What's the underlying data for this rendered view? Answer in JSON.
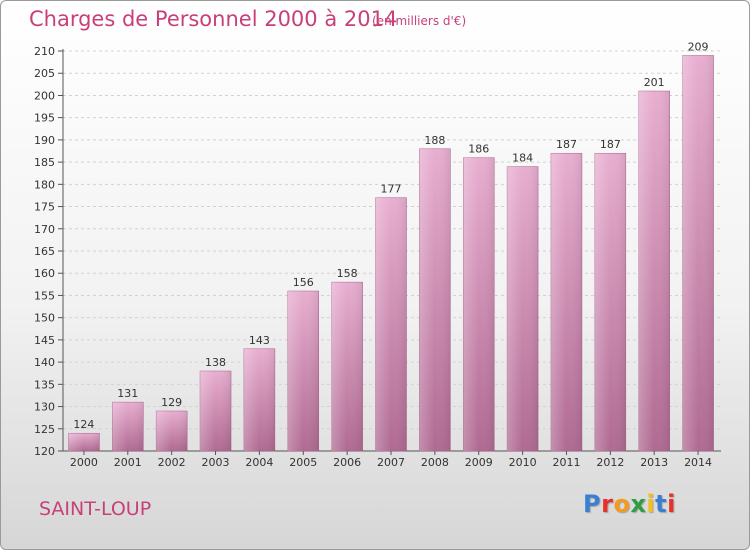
{
  "header": {
    "title": "Charges de Personnel 2000 à 2014",
    "subtitle": "(en milliers d'€)"
  },
  "footer": {
    "place": "SAINT-LOUP",
    "logo_text": "Proxiti",
    "logo_colors": [
      "#3a7fd0",
      "#e8302a",
      "#f39a1f",
      "#2e9d44",
      "#f0c020",
      "#3a7fd0",
      "#e8302a"
    ]
  },
  "colors": {
    "bar_light": "#e8aed0",
    "bar_dark": "#b06a92",
    "text": "#333333",
    "accent": "#c8407a"
  },
  "chart_data": {
    "type": "bar",
    "categories": [
      "2000",
      "2001",
      "2002",
      "2003",
      "2004",
      "2005",
      "2006",
      "2007",
      "2008",
      "2009",
      "2010",
      "2011",
      "2012",
      "2013",
      "2014"
    ],
    "values": [
      124,
      131,
      129,
      138,
      143,
      156,
      158,
      177,
      188,
      186,
      184,
      187,
      187,
      201,
      209
    ],
    "ylim": [
      120,
      210
    ],
    "yticks": [
      120,
      125,
      130,
      135,
      140,
      145,
      150,
      155,
      160,
      165,
      170,
      175,
      180,
      185,
      190,
      195,
      200,
      205,
      210
    ],
    "grid": true,
    "legend": "none"
  }
}
